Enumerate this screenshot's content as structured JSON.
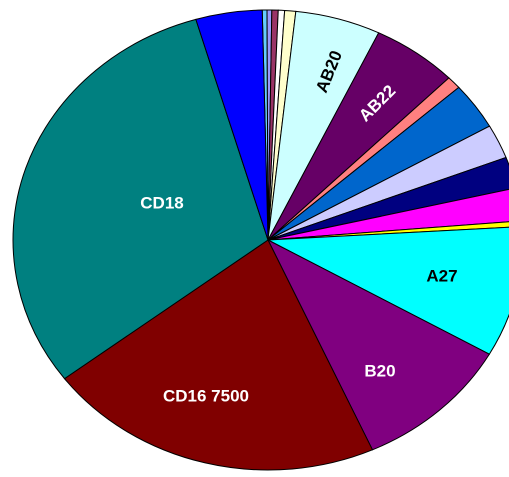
{
  "chart_data": {
    "type": "pie",
    "categories": [
      null,
      null,
      null,
      null,
      null,
      "AB20",
      "AB22",
      null,
      null,
      null,
      null,
      null,
      null,
      "A27",
      "B20",
      "CD16 7500",
      "CD18",
      null
    ],
    "values": [
      0.3,
      0.3,
      0.4,
      0.4,
      0.7,
      5.4,
      5.4,
      0.9,
      3.3,
      2.4,
      2.2,
      2.3,
      0.4,
      9.2,
      10.0,
      21.4,
      30.7,
      4.2
    ],
    "colors": [
      "#66ccff",
      "#9999ff",
      "#993366",
      "#ffffff",
      "#ffffcc",
      "#ccffff",
      "#660066",
      "#ff8080",
      "#0066cc",
      "#ccccff",
      "#000080",
      "#ff00ff",
      "#ffff00",
      "#00ffff",
      "#800080",
      "#800000",
      "#008080",
      "#0000ff"
    ]
  }
}
